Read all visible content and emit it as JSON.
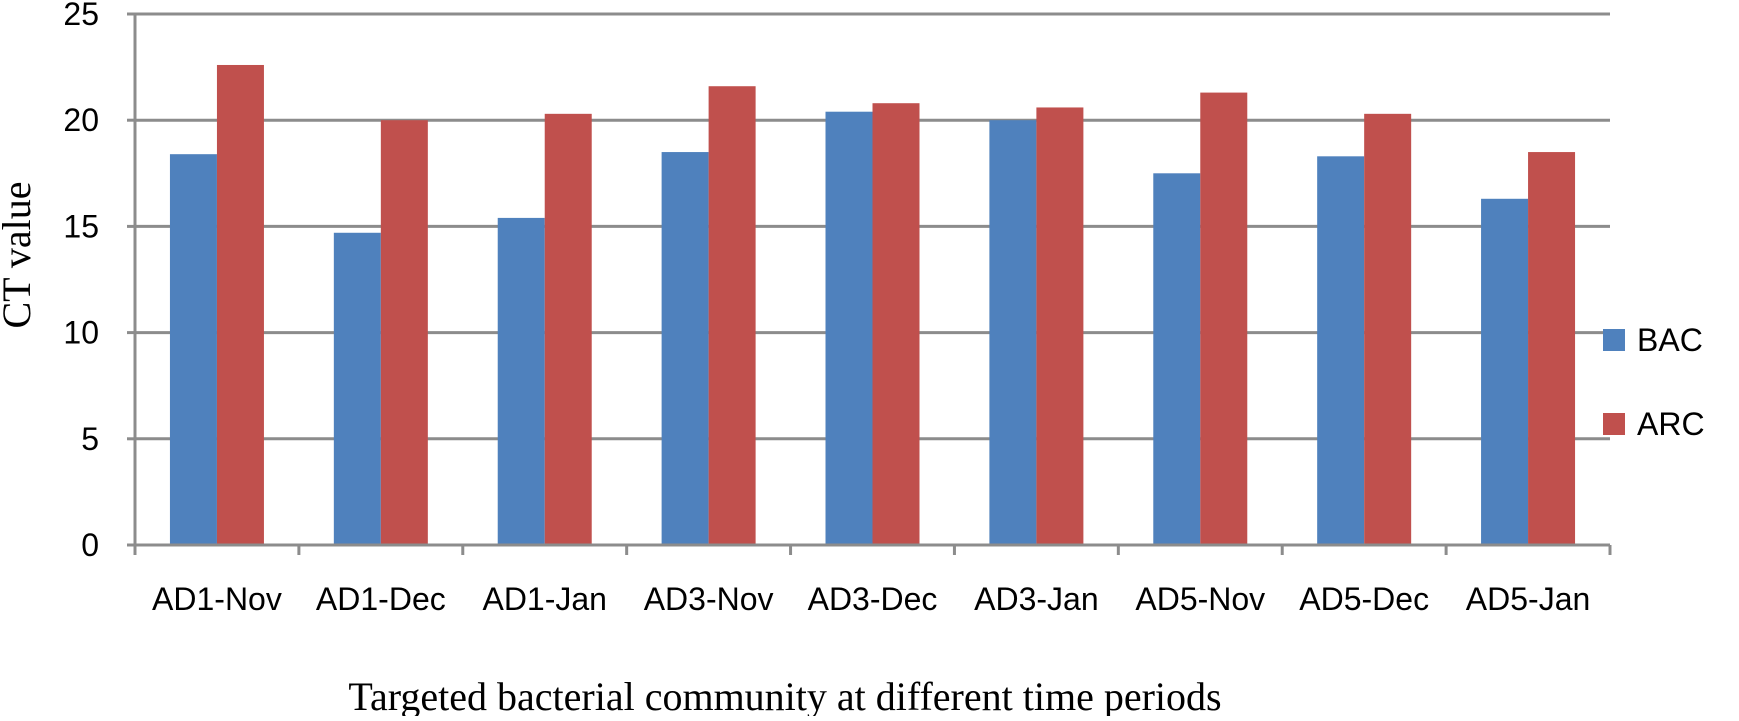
{
  "chart_data": {
    "type": "bar",
    "categories": [
      "AD1-Nov",
      "AD1-Dec",
      "AD1-Jan",
      "AD3-Nov",
      "AD3-Dec",
      "AD3-Jan",
      "AD5-Nov",
      "AD5-Dec",
      "AD5-Jan"
    ],
    "series": [
      {
        "name": "BAC",
        "color": "#4f81bd",
        "values": [
          18.4,
          14.7,
          15.4,
          18.5,
          20.4,
          20.0,
          17.5,
          18.3,
          16.3
        ]
      },
      {
        "name": "ARC",
        "color": "#c0504d",
        "values": [
          22.6,
          20.0,
          20.3,
          21.6,
          20.8,
          20.6,
          21.3,
          20.3,
          18.5
        ]
      }
    ],
    "title": "",
    "xlabel": "Targeted bacterial community at different time periods",
    "ylabel": "CT value",
    "ylim": [
      0,
      25
    ],
    "yticks": [
      0,
      5,
      10,
      15,
      20,
      25
    ],
    "grid": true,
    "legend_position": "right"
  }
}
